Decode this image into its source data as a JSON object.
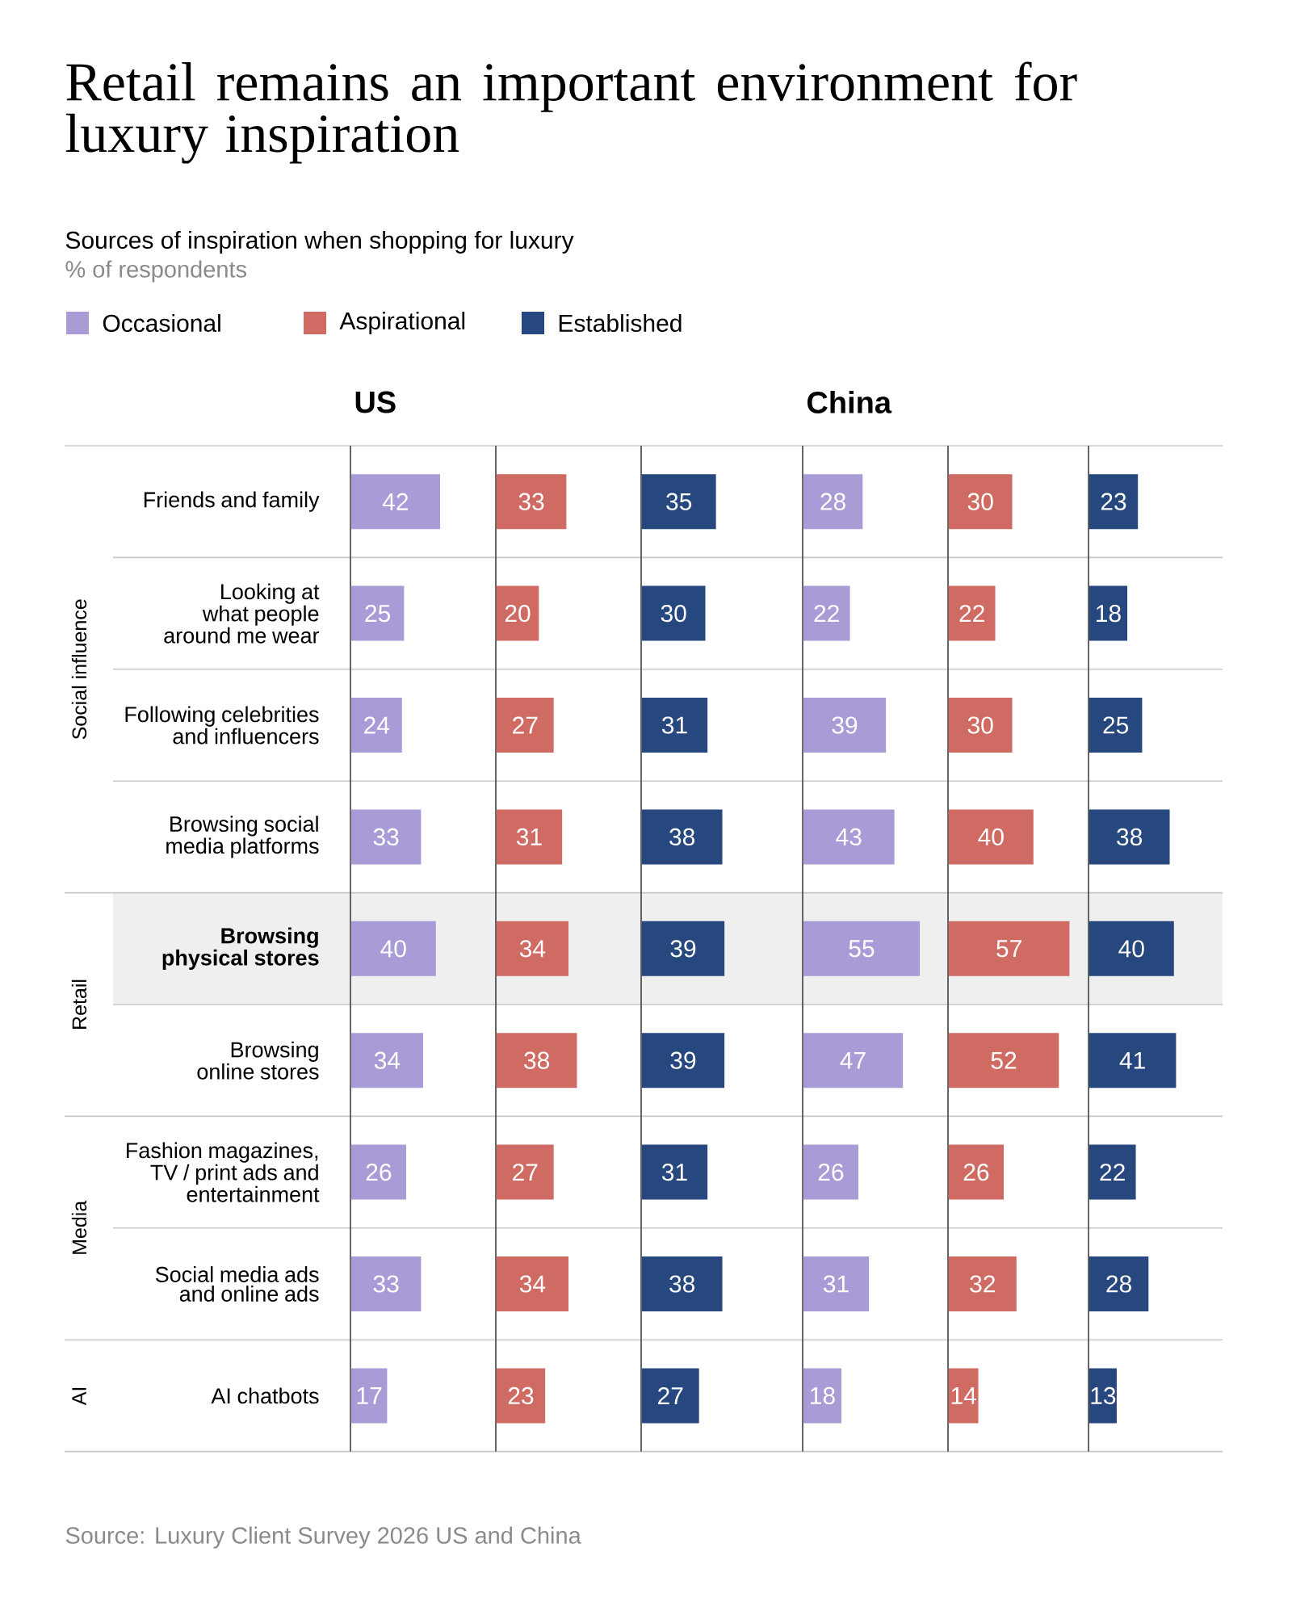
{
  "chart_data": [
    {
      "type": "other",
      "title": "Retail remains an important environment for luxury inspiration",
      "subtitle": "Sources of inspiration when shopping for luxury",
      "annotations": [
        "% of respondents",
        "Source: Luxury Client Survey 2026 US and China"
      ]
    },
    {
      "type": "bar",
      "orientation": "horizontal",
      "title": "US",
      "categories": [
        "Friends and family",
        "Looking at what people around me wear",
        "Following celebrities and influencers",
        "Browsing social media platforms",
        "Browsing physical stores",
        "Browsing online stores",
        "Fashion magazines, TV / print ads and entertainment",
        "Social media ads and online ads",
        "AI chatbots"
      ],
      "series": [
        {
          "name": "Occasional",
          "color": "#a99bd6",
          "values": [
            42,
            25,
            24,
            33,
            40,
            34,
            26,
            33,
            17
          ]
        }
      ],
      "data_labels": true,
      "legend": "top",
      "bands": [
        {
          "axis": "y",
          "from": "Browsing physical stores",
          "to": "Browsing physical stores",
          "color": "#efefef"
        }
      ],
      "annotations": [
        "Social influence",
        "Retail",
        "Media",
        "AI"
      ]
    },
    {
      "type": "bar",
      "orientation": "horizontal",
      "categories": [
        null,
        null,
        null,
        null,
        null,
        null,
        null,
        null,
        null
      ],
      "series": [
        {
          "name": "Aspirational",
          "color": "#d06b63",
          "values": [
            33,
            20,
            27,
            31,
            34,
            38,
            27,
            34,
            23
          ]
        }
      ],
      "data_labels": true,
      "legend": "top"
    },
    {
      "type": "bar",
      "orientation": "horizontal",
      "categories": [
        null,
        null,
        null,
        null,
        null,
        null,
        null,
        null,
        null
      ],
      "series": [
        {
          "name": "Established",
          "color": "#27477f",
          "values": [
            35,
            30,
            31,
            38,
            39,
            39,
            31,
            38,
            27
          ]
        }
      ],
      "data_labels": true,
      "legend": "top"
    },
    {
      "type": "bar",
      "orientation": "horizontal",
      "title": "China",
      "categories": [
        null,
        null,
        null,
        null,
        null,
        null,
        null,
        null,
        null
      ],
      "series": [
        {
          "color": "#a99bd6",
          "values": [
            28,
            22,
            39,
            43,
            55,
            47,
            26,
            31,
            18
          ]
        }
      ],
      "data_labels": true
    },
    {
      "type": "bar",
      "orientation": "horizontal",
      "categories": [
        null,
        null,
        null,
        null,
        null,
        null,
        null,
        null,
        null
      ],
      "series": [
        {
          "color": "#d06b63",
          "values": [
            30,
            22,
            30,
            40,
            57,
            52,
            26,
            32,
            14
          ]
        }
      ],
      "data_labels": true
    },
    {
      "type": "bar",
      "orientation": "horizontal",
      "categories": [
        null,
        null,
        null,
        null,
        null,
        null,
        null,
        null,
        null
      ],
      "series": [
        {
          "color": "#27477f",
          "values": [
            23,
            18,
            25,
            38,
            40,
            41,
            22,
            28,
            13
          ]
        }
      ],
      "data_labels": true
    }
  ]
}
